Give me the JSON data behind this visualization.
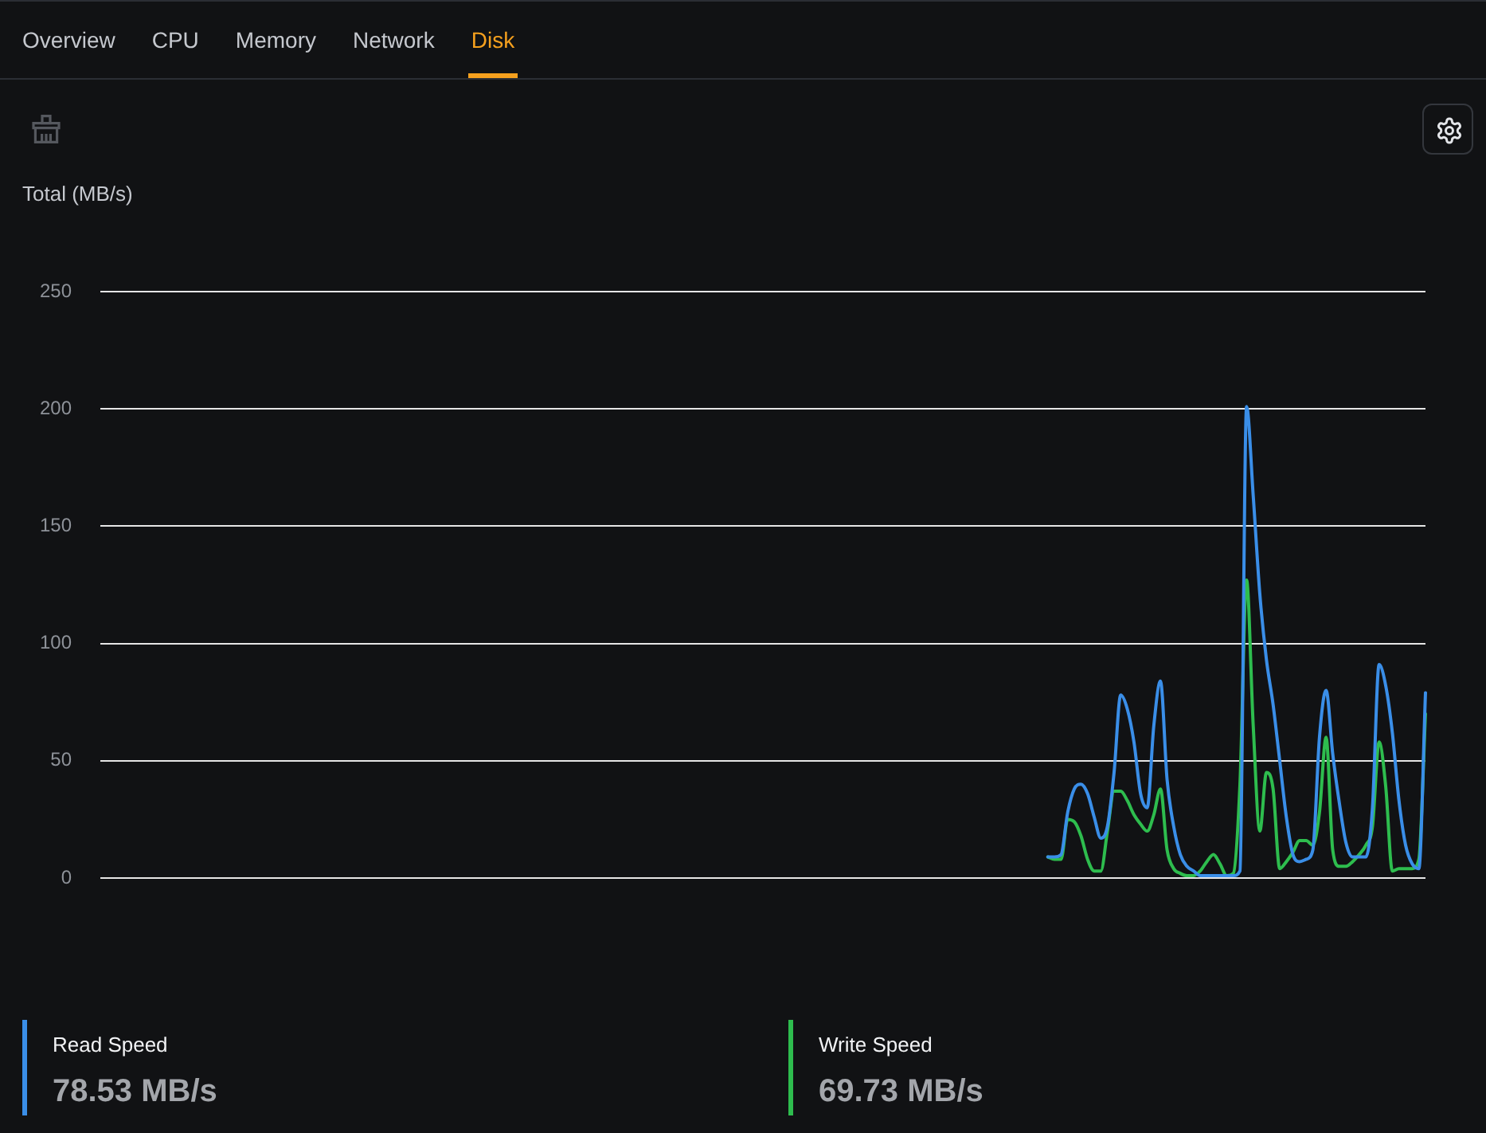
{
  "chart_data": {
    "type": "line",
    "title": "Disk",
    "ylabel": "Total (MB/s)",
    "annotations": [
      "Overview",
      "CPU",
      "Memory",
      "Network",
      "78.53 MB/s",
      "69.73 MB/s"
    ],
    "categories": [
      null,
      null,
      null,
      null,
      null,
      null,
      null,
      null,
      null,
      null,
      null,
      null,
      null,
      null,
      null,
      null,
      null,
      null,
      null,
      null,
      null,
      null,
      null,
      null,
      null,
      null,
      null,
      null,
      null,
      null,
      null,
      null,
      null,
      null,
      null,
      null,
      null,
      null,
      null,
      null,
      null,
      null,
      null,
      null,
      null,
      null,
      null,
      null,
      null,
      null,
      null,
      null,
      null,
      null,
      null,
      null,
      null,
      null,
      null,
      null,
      null,
      null,
      null,
      null,
      null,
      null,
      null,
      null,
      null,
      null,
      null,
      null,
      null,
      null,
      null,
      null,
      null,
      null,
      null,
      null,
      null,
      null,
      null,
      null,
      null,
      null,
      null,
      null,
      null,
      null,
      null,
      null,
      null,
      null,
      null,
      null,
      null,
      null,
      null,
      null,
      null,
      null,
      null,
      null,
      null,
      null,
      null,
      null,
      null,
      null,
      null,
      null,
      null,
      null,
      null,
      null,
      null,
      null,
      null,
      null,
      null,
      null,
      null,
      null,
      null,
      null,
      null,
      null,
      null,
      null,
      null,
      null,
      null,
      null,
      null,
      null,
      null,
      null,
      null,
      null,
      null,
      null,
      null,
      null,
      null,
      null,
      null,
      null,
      null,
      null,
      null,
      null,
      null,
      null,
      null,
      null,
      null,
      null,
      null,
      null,
      null,
      null,
      null,
      null,
      null,
      null,
      null,
      null,
      null,
      null,
      null,
      null,
      null,
      null,
      null,
      null,
      null,
      null,
      null,
      null,
      null,
      null,
      null,
      null,
      null,
      null,
      null,
      null,
      null,
      null,
      null,
      null,
      null,
      null,
      null,
      null,
      null,
      null,
      null,
      null,
      null
    ],
    "series": [
      {
        "name": "Read Speed",
        "color": "#3a8ee8",
        "values": [
          null,
          null,
          null,
          null,
          null,
          null,
          null,
          null,
          null,
          null,
          null,
          null,
          null,
          null,
          null,
          null,
          null,
          null,
          null,
          null,
          null,
          null,
          null,
          null,
          null,
          null,
          null,
          null,
          null,
          null,
          null,
          null,
          null,
          null,
          null,
          null,
          null,
          null,
          null,
          null,
          null,
          null,
          null,
          null,
          null,
          null,
          null,
          null,
          null,
          null,
          null,
          null,
          null,
          null,
          null,
          null,
          null,
          null,
          null,
          null,
          null,
          null,
          null,
          null,
          null,
          null,
          null,
          null,
          null,
          null,
          null,
          null,
          null,
          null,
          null,
          null,
          null,
          null,
          null,
          null,
          null,
          null,
          null,
          null,
          null,
          null,
          null,
          null,
          null,
          null,
          null,
          null,
          null,
          null,
          null,
          null,
          null,
          null,
          null,
          null,
          null,
          null,
          null,
          null,
          null,
          null,
          null,
          null,
          null,
          null,
          null,
          null,
          null,
          null,
          null,
          null,
          null,
          null,
          null,
          null,
          null,
          null,
          null,
          null,
          null,
          null,
          null,
          null,
          null,
          null,
          null,
          null,
          null,
          null,
          null,
          null,
          null,
          null,
          null,
          null,
          null,
          null,
          null,
          9,
          9,
          10,
          28,
          38,
          40,
          36,
          26,
          17,
          22,
          45,
          78,
          72,
          58,
          36,
          30,
          65,
          84,
          42,
          22,
          10,
          5,
          3,
          1,
          1,
          1,
          1,
          1,
          1,
          3,
          201,
          163,
          121,
          93,
          74,
          50,
          26,
          10,
          7,
          8,
          12,
          60,
          80,
          53,
          32,
          15,
          9,
          9,
          9,
          30,
          91,
          82,
          62,
          33,
          14,
          6,
          4,
          79
        ]
      },
      {
        "name": "Write Speed",
        "color": "#2ebd4e",
        "values": [
          null,
          null,
          null,
          null,
          null,
          null,
          null,
          null,
          null,
          null,
          null,
          null,
          null,
          null,
          null,
          null,
          null,
          null,
          null,
          null,
          null,
          null,
          null,
          null,
          null,
          null,
          null,
          null,
          null,
          null,
          null,
          null,
          null,
          null,
          null,
          null,
          null,
          null,
          null,
          null,
          null,
          null,
          null,
          null,
          null,
          null,
          null,
          null,
          null,
          null,
          null,
          null,
          null,
          null,
          null,
          null,
          null,
          null,
          null,
          null,
          null,
          null,
          null,
          null,
          null,
          null,
          null,
          null,
          null,
          null,
          null,
          null,
          null,
          null,
          null,
          null,
          null,
          null,
          null,
          null,
          null,
          null,
          null,
          null,
          null,
          null,
          null,
          null,
          null,
          null,
          null,
          null,
          null,
          null,
          null,
          null,
          null,
          null,
          null,
          null,
          null,
          null,
          null,
          null,
          null,
          null,
          null,
          null,
          null,
          null,
          null,
          null,
          null,
          null,
          null,
          null,
          null,
          null,
          null,
          null,
          null,
          null,
          null,
          null,
          null,
          null,
          null,
          null,
          null,
          null,
          null,
          null,
          null,
          null,
          null,
          null,
          null,
          null,
          null,
          null,
          null,
          null,
          null,
          9,
          8,
          8,
          25,
          24,
          18,
          8,
          3,
          3,
          20,
          37,
          37,
          33,
          27,
          23,
          20,
          27,
          38,
          12,
          4,
          2,
          1,
          1,
          3,
          7,
          10,
          6,
          1,
          2,
          40,
          127,
          65,
          20,
          45,
          38,
          4,
          7,
          11,
          16,
          16,
          14,
          28,
          60,
          12,
          5,
          5,
          7,
          10,
          14,
          22,
          58,
          39,
          3,
          4,
          4,
          4,
          8,
          70
        ]
      }
    ],
    "ylim": [
      0,
      250
    ],
    "yticks": [
      0,
      50,
      100,
      150,
      200,
      250
    ],
    "grid": "y",
    "legend": "bottom",
    "tick_labels": "y"
  }
}
